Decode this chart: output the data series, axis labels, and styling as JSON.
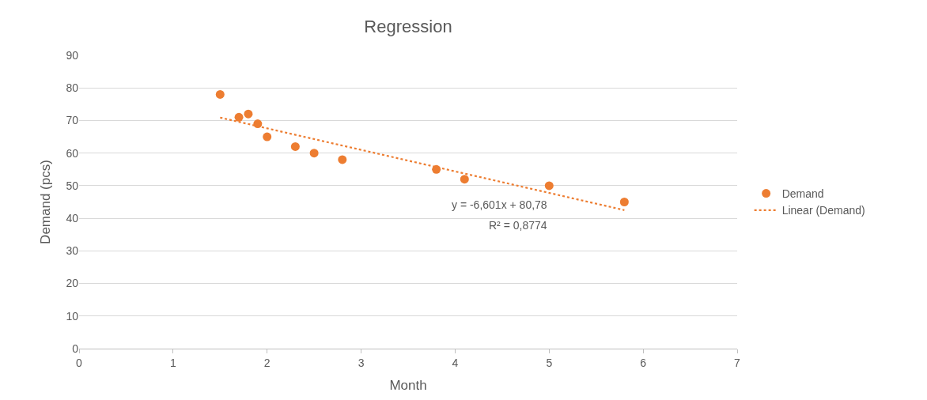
{
  "chart_data": {
    "type": "scatter",
    "title": "Regression",
    "xlabel": "Month",
    "ylabel": "Demand (pcs)",
    "x": [
      1.5,
      1.7,
      1.8,
      1.9,
      2.0,
      2.3,
      2.5,
      2.8,
      3.8,
      4.1,
      5.0,
      5.8
    ],
    "series": [
      {
        "name": "Demand",
        "color": "#ed7d31",
        "marker": "circle",
        "values": [
          78,
          71,
          72,
          69,
          65,
          62,
          60,
          58,
          55,
          52,
          50,
          45
        ]
      },
      {
        "name": "Linear (Demand)",
        "color": "#ed7d31",
        "type": "line",
        "line_style": "dotted",
        "marker": "none",
        "x": [
          1.5,
          5.8
        ],
        "values": [
          70.9,
          42.5
        ]
      }
    ],
    "annotations": [
      "y = -6,601x + 80,78",
      "R² = 0,8774"
    ],
    "xlim": [
      0,
      7
    ],
    "xticks": [
      0,
      1,
      2,
      3,
      4,
      5,
      6,
      7
    ],
    "ylim": [
      0,
      90
    ],
    "yticks": [
      0,
      10,
      20,
      30,
      40,
      50,
      60,
      70,
      80,
      90
    ],
    "grid": "y",
    "legend": "right"
  }
}
